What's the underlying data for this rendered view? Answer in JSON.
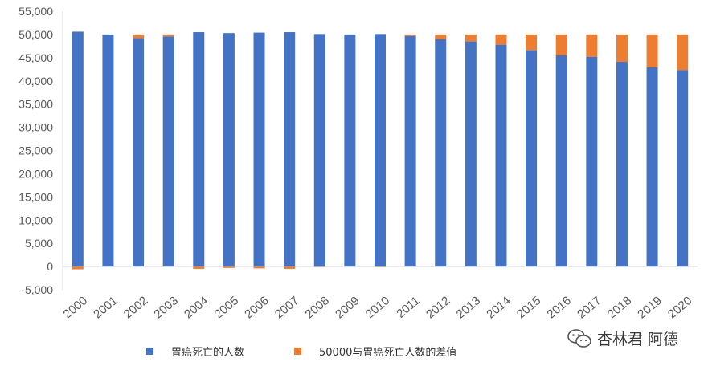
{
  "chart_data": {
    "type": "bar",
    "stacked": true,
    "categories": [
      "2000",
      "2001",
      "2002",
      "2003",
      "2004",
      "2005",
      "2006",
      "2007",
      "2008",
      "2009",
      "2010",
      "2011",
      "2012",
      "2013",
      "2014",
      "2015",
      "2016",
      "2017",
      "2018",
      "2019",
      "2020"
    ],
    "series": [
      {
        "name": "胃癌死亡的人数",
        "color": "#4472C4",
        "values": [
          50600,
          50000,
          49200,
          49600,
          50500,
          50300,
          50400,
          50500,
          50100,
          50000,
          50100,
          49700,
          49000,
          48500,
          47800,
          46600,
          45500,
          45200,
          44100,
          42900,
          42300
        ]
      },
      {
        "name": "50000与胃癌死亡人数的差值",
        "color": "#ED7D31",
        "values": [
          -600,
          0,
          800,
          400,
          -500,
          -300,
          -400,
          -500,
          -100,
          0,
          -100,
          300,
          1000,
          1500,
          2200,
          3400,
          4500,
          4800,
          5900,
          7100,
          7700
        ]
      }
    ],
    "ylim": [
      -5000,
      55000
    ],
    "yticks": [
      "-5,000",
      "0",
      "5,000",
      "10,000",
      "15,000",
      "20,000",
      "25,000",
      "30,000",
      "35,000",
      "40,000",
      "45,000",
      "50,000",
      "55,000"
    ],
    "grid": false,
    "legend_position": "bottom"
  },
  "watermark": {
    "text": "杏林君 阿德",
    "icon": "wechat-icon"
  }
}
